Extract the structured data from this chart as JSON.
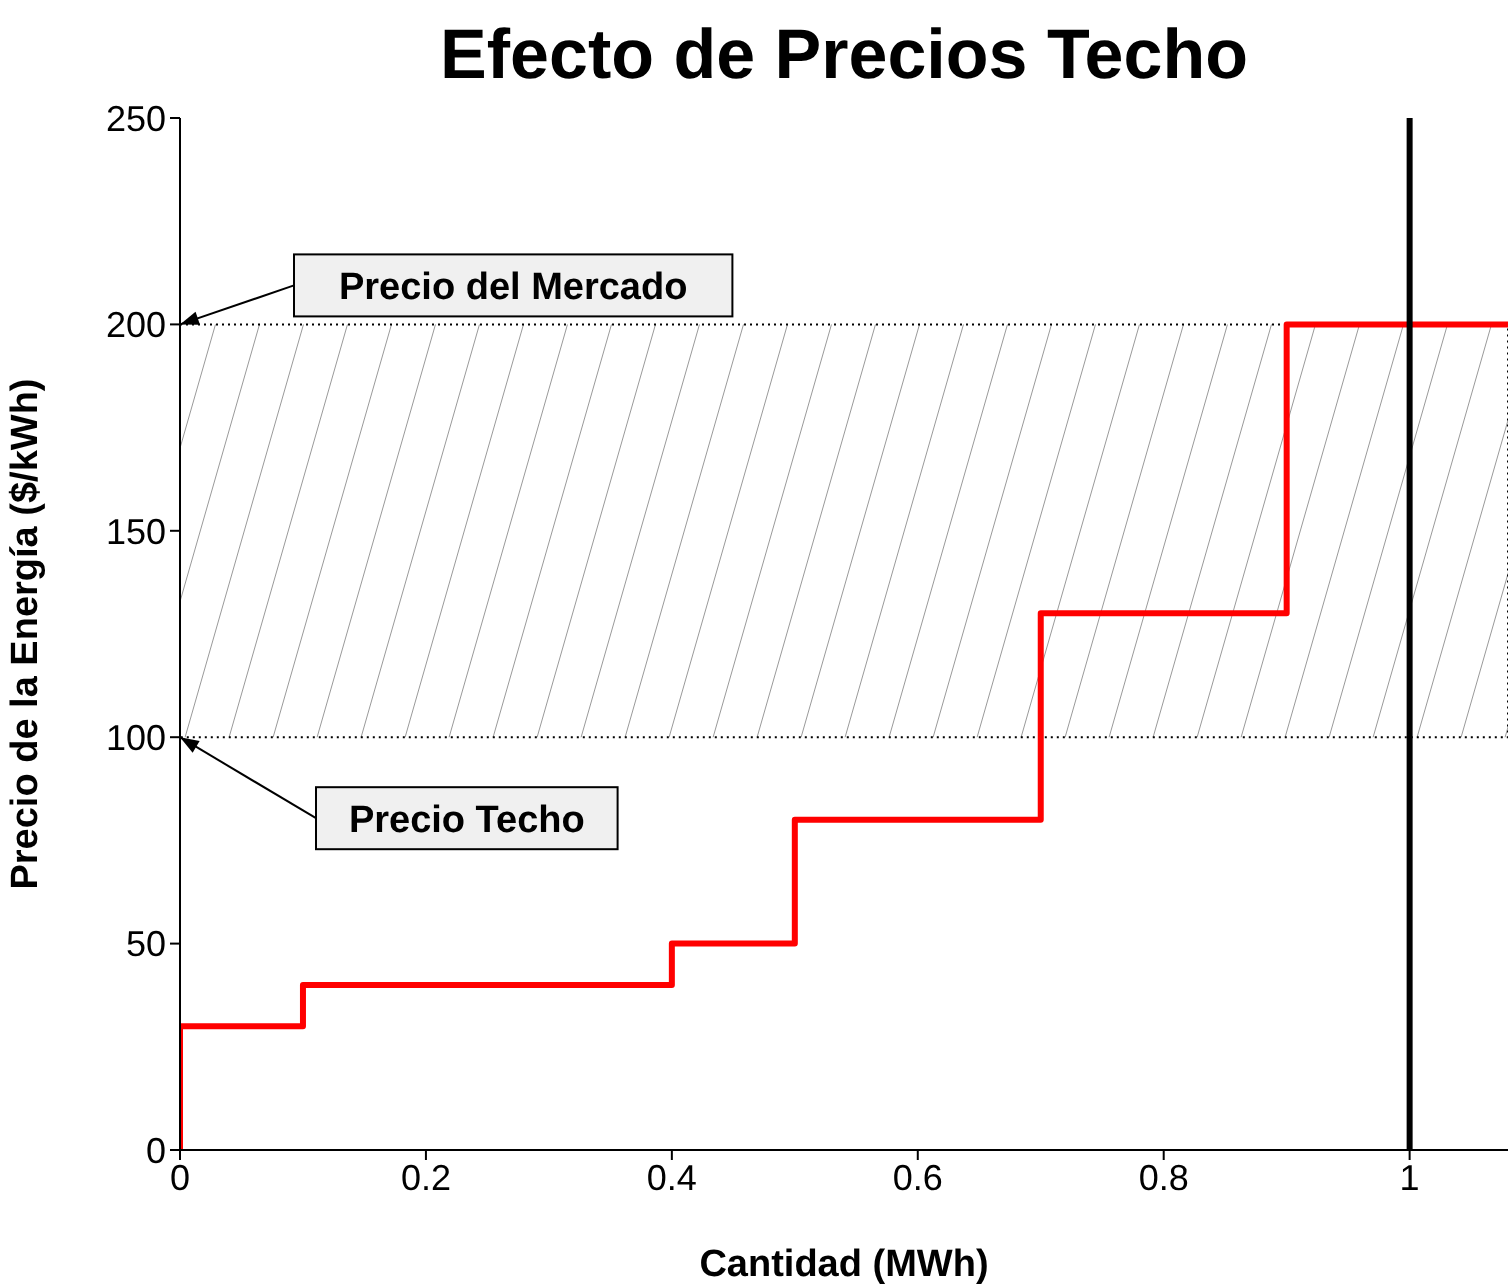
{
  "chart_data": {
    "type": "step",
    "title": "Efecto de Precios Techo",
    "xlabel": "Cantidad (MWh)",
    "ylabel": "Precio de la Energía ($/kWh)",
    "x": [
      0,
      0,
      0.1,
      0.4,
      0.5,
      0.7,
      0.9,
      1.08
    ],
    "series": [
      {
        "color": "#ff0000",
        "values": [
          0,
          30,
          40,
          50,
          80,
          130,
          200,
          200
        ]
      }
    ],
    "xlim": [
      0,
      1.08
    ],
    "xticks": [
      0,
      0.2,
      0.4,
      0.6,
      0.8,
      1
    ],
    "ylim": [
      0,
      250
    ],
    "yticks": [
      0,
      50,
      100,
      150,
      200,
      250
    ],
    "ref_lines": [
      {
        "axis": "x",
        "value": 1,
        "color": "#000000"
      }
    ],
    "bands": [
      {
        "axis": "y",
        "from": 100,
        "to": 200,
        "color": "#000000"
      }
    ],
    "annotations": [
      {
        "text": "Precio del Mercado",
        "x": 0,
        "y": 200
      },
      {
        "text": "Precio Techo",
        "x": 0,
        "y": 100
      }
    ]
  }
}
